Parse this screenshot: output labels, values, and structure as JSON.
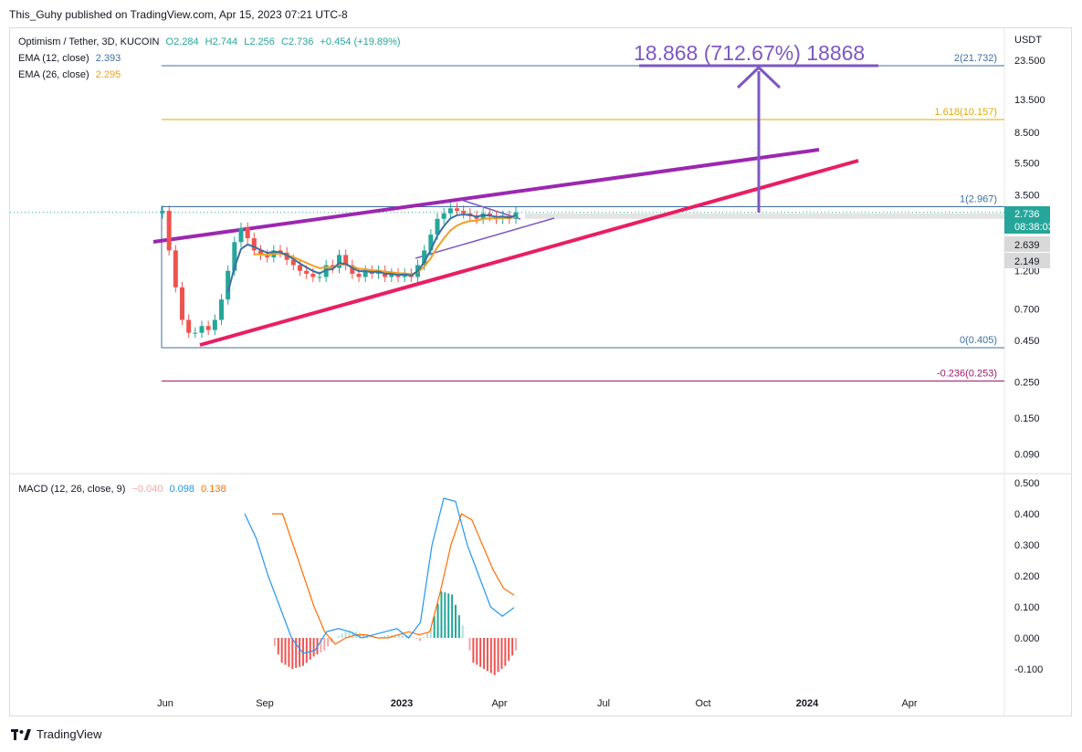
{
  "publisher": "This_Guhy published on TradingView.com, Apr 15, 2023 07:21 UTC-8",
  "brand": "TradingView",
  "header": {
    "pair": "Optimism / Tether, 3D, KUCOIN",
    "open": "O2.284",
    "high": "H2.744",
    "low": "L2.256",
    "close": "C2.736",
    "change": "+0.454 (+19.89%)",
    "ema12_label": "EMA (12, close)",
    "ema12_value": "2.393",
    "ema26_label": "EMA (26, close)",
    "ema26_value": "2.295"
  },
  "macd_legend": {
    "label": "MACD (12, 26, close, 9)",
    "hist": "−0.040",
    "macd": "0.098",
    "signal": "0.138"
  },
  "colors": {
    "up": "#26a69a",
    "down": "#ef5350",
    "ema12": "#3d6fa0",
    "ema26": "#f0a020",
    "purple": "#9c27b0",
    "pink": "#e91e63",
    "arrow": "#7e57c2",
    "macd_line": "#2196f3",
    "signal_line": "#ff6d00",
    "price_badge": "#26a69a"
  },
  "chart_data": [
    {
      "type": "candlestick",
      "title": "Optimism / Tether, 3D, KUCOIN",
      "scale": "log",
      "y_axis_unit": "USDT",
      "y_ticks": [
        "23.500",
        "13.500",
        "8.500",
        "5.500",
        "3.500",
        "1.200",
        "0.700",
        "0.450",
        "0.250",
        "0.150",
        "0.090"
      ],
      "x_ticks": [
        "Jun",
        "Sep",
        "2023",
        "Apr",
        "Jul",
        "Oct",
        "2024",
        "Apr"
      ],
      "last_price": "2.736",
      "countdown": "08:38:03",
      "price_labels": [
        "2.639",
        "2.149"
      ],
      "fib_levels": [
        {
          "ratio": "2",
          "price": 21.732,
          "label": "2(21.732)",
          "color": "#3d6fa0"
        },
        {
          "ratio": "1.618",
          "price": 10.157,
          "label": "1.618(10.157)",
          "color": "#e0a800"
        },
        {
          "ratio": "1",
          "price": 2.967,
          "label": "1(2.967)",
          "color": "#3d6fa0"
        },
        {
          "ratio": "0",
          "price": 0.405,
          "label": "0(0.405)",
          "color": "#3d6fa0"
        },
        {
          "ratio": "-0.236",
          "price": 0.253,
          "label": "-0.236(0.253)",
          "color": "#9c1a6e"
        }
      ],
      "target_annotation": "18.868 (712.67%) 18868",
      "candles_approx_close": [
        2.8,
        1.6,
        0.95,
        0.6,
        0.5,
        0.5,
        0.55,
        0.52,
        0.6,
        0.8,
        1.2,
        1.8,
        2.2,
        1.9,
        1.6,
        1.5,
        1.45,
        1.6,
        1.55,
        1.4,
        1.3,
        1.2,
        1.15,
        1.1,
        1.1,
        1.3,
        1.25,
        1.5,
        1.3,
        1.15,
        1.1,
        1.2,
        1.15,
        1.2,
        1.1,
        1.15,
        1.1,
        1.15,
        1.1,
        1.3,
        1.6,
        2.0,
        2.5,
        2.7,
        2.9,
        2.8,
        2.7,
        2.6,
        2.5,
        2.7,
        2.6,
        2.5,
        2.6,
        2.5,
        2.736
      ]
    },
    {
      "type": "line",
      "title": "MACD (12, 26, close, 9)",
      "y_ticks": [
        "0.500",
        "0.400",
        "0.300",
        "0.200",
        "0.100",
        "0.000",
        "-0.100"
      ],
      "series": [
        {
          "name": "MACD",
          "values": [
            0.4,
            0.32,
            0.2,
            0.1,
            0.0,
            -0.05,
            -0.04,
            0.02,
            0.03,
            0.02,
            0.0,
            0.01,
            0.02,
            0.03,
            0.0,
            0.05,
            0.3,
            0.45,
            0.44,
            0.3,
            0.2,
            0.1,
            0.07,
            0.098
          ]
        },
        {
          "name": "Signal",
          "values": [
            0.4,
            0.4,
            0.3,
            0.2,
            0.1,
            0.02,
            -0.02,
            0.0,
            0.01,
            0.01,
            0.0,
            0.0,
            0.01,
            0.02,
            0.01,
            0.02,
            0.15,
            0.3,
            0.4,
            0.38,
            0.3,
            0.22,
            0.16,
            0.138
          ]
        },
        {
          "name": "Histogram",
          "values": [
            0.0,
            -0.08,
            -0.1,
            -0.09,
            -0.06,
            -0.04,
            0.0,
            0.02,
            0.02,
            0.01,
            0.0,
            0.01,
            0.01,
            0.01,
            -0.01,
            0.03,
            0.15,
            0.14,
            0.04,
            -0.08,
            -0.1,
            -0.12,
            -0.09,
            -0.04
          ]
        }
      ]
    }
  ]
}
